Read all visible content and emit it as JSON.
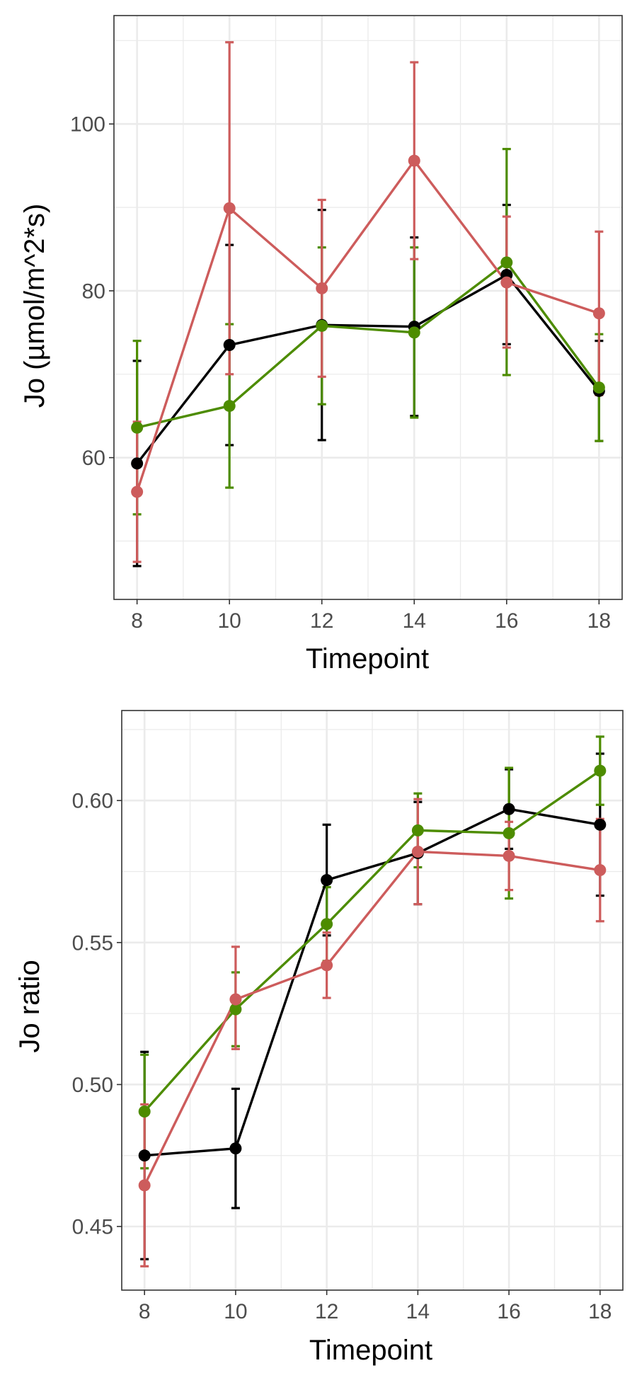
{
  "chart_data": [
    {
      "type": "line",
      "xlabel": "Timepoint",
      "ylabel": "Jo (µmol/m^2*s)",
      "xlim": [
        7.5,
        18.5
      ],
      "ylim": [
        43.0,
        113.0
      ],
      "x_ticks": [
        8,
        10,
        12,
        14,
        16,
        18
      ],
      "x_tick_labels": [
        "8",
        "10",
        "12",
        "14",
        "16",
        "18"
      ],
      "y_ticks": [
        60,
        80,
        100
      ],
      "y_tick_labels": [
        "60",
        "80",
        "100"
      ],
      "grid": true,
      "series": [
        {
          "color": "#000000",
          "x": [
            8,
            10,
            12,
            14,
            16,
            18
          ],
          "y": [
            59.3,
            73.5,
            75.9,
            75.7,
            81.9,
            68.0
          ],
          "err_low": [
            47.0,
            61.5,
            62.1,
            65.0,
            73.6,
            62.0
          ],
          "err_high": [
            71.6,
            85.5,
            89.7,
            86.4,
            90.3,
            74.0
          ]
        },
        {
          "color": "#4d8c00",
          "x": [
            8,
            10,
            12,
            14,
            16,
            18
          ],
          "y": [
            63.6,
            66.2,
            75.8,
            75.0,
            83.4,
            68.4
          ],
          "err_low": [
            53.2,
            56.4,
            66.4,
            64.8,
            69.9,
            62.0
          ],
          "err_high": [
            74.0,
            76.0,
            85.2,
            85.2,
            97.0,
            74.8
          ]
        },
        {
          "color": "#cd5c5c",
          "x": [
            8,
            10,
            12,
            14,
            16,
            18
          ],
          "y": [
            55.9,
            89.9,
            80.3,
            95.6,
            81.0,
            77.3
          ],
          "err_low": [
            47.5,
            70.0,
            69.7,
            83.8,
            73.2,
            67.5
          ],
          "err_high": [
            64.3,
            109.8,
            90.9,
            107.4,
            88.9,
            87.1
          ]
        }
      ]
    },
    {
      "type": "line",
      "xlabel": "Timepoint",
      "ylabel": "Jo ratio",
      "xlim": [
        7.5,
        18.5
      ],
      "ylim": [
        0.4276,
        0.6317
      ],
      "x_ticks": [
        8,
        10,
        12,
        14,
        16,
        18
      ],
      "x_tick_labels": [
        "8",
        "10",
        "12",
        "14",
        "16",
        "18"
      ],
      "y_ticks": [
        0.45,
        0.5,
        0.55,
        0.6
      ],
      "y_tick_labels": [
        "0.45",
        "0.50",
        "0.55",
        "0.60"
      ],
      "grid": true,
      "series": [
        {
          "color": "#000000",
          "x": [
            8,
            10,
            12,
            14,
            16,
            18
          ],
          "y": [
            0.475,
            0.4775,
            0.572,
            0.5815,
            0.597,
            0.5915
          ],
          "err_low": [
            0.4385,
            0.4565,
            0.5525,
            0.5635,
            0.583,
            0.5665
          ],
          "err_high": [
            0.5115,
            0.4985,
            0.5915,
            0.5995,
            0.611,
            0.6165
          ]
        },
        {
          "color": "#4d8c00",
          "x": [
            8,
            10,
            12,
            14,
            16,
            18
          ],
          "y": [
            0.4905,
            0.5265,
            0.5565,
            0.5895,
            0.5885,
            0.6105
          ],
          "err_low": [
            0.4705,
            0.5135,
            0.5435,
            0.5765,
            0.5655,
            0.5985
          ],
          "err_high": [
            0.5105,
            0.5395,
            0.5695,
            0.6025,
            0.6115,
            0.6225
          ]
        },
        {
          "color": "#cd5c5c",
          "x": [
            8,
            10,
            12,
            14,
            16,
            18
          ],
          "y": [
            0.4645,
            0.53,
            0.542,
            0.582,
            0.5805,
            0.5755
          ],
          "err_low": [
            0.436,
            0.5125,
            0.5305,
            0.5635,
            0.5685,
            0.5575
          ],
          "err_high": [
            0.493,
            0.5485,
            0.5535,
            0.6005,
            0.5925,
            0.5935
          ]
        }
      ]
    }
  ]
}
